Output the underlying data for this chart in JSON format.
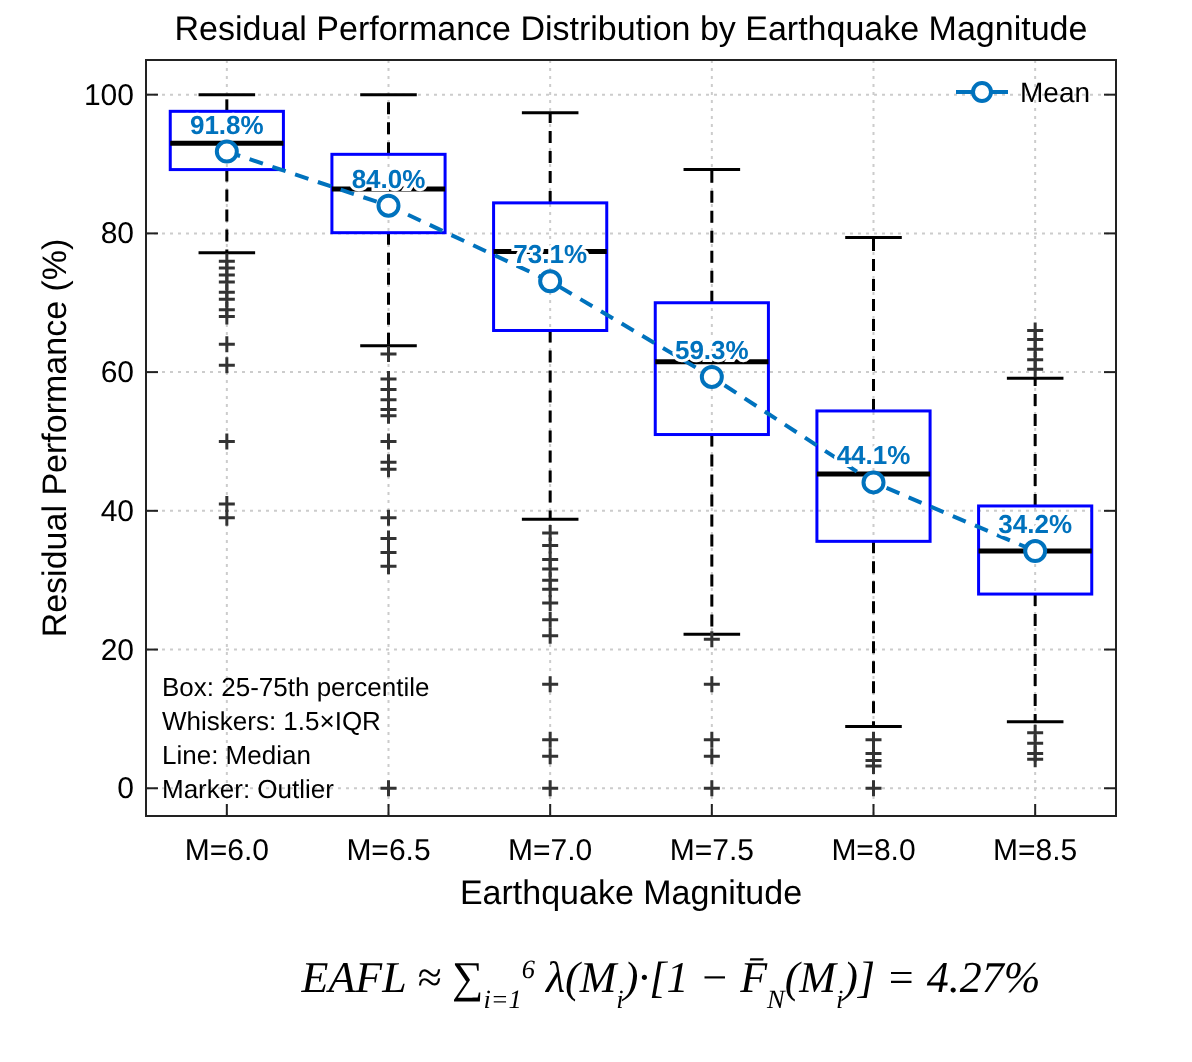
{
  "chart_data": {
    "type": "box",
    "title": "Residual Performance Distribution by Earthquake Magnitude",
    "xlabel": "Earthquake Magnitude",
    "ylabel": "Residual Performance (%)",
    "categories": [
      "M=6.0",
      "M=6.5",
      "M=7.0",
      "M=7.5",
      "M=8.0",
      "M=8.5"
    ],
    "ylim": [
      -4,
      105
    ],
    "yticks": [
      0,
      20,
      40,
      60,
      80,
      100
    ],
    "grid": true,
    "legend": "top right",
    "series": [
      {
        "color": "#0000ff",
        "boxes": [
          {
            "low": 77.2,
            "q1": 89.2,
            "median": 93.0,
            "q3": 97.6,
            "high": 100,
            "outliers": [
              76,
              75,
              74,
              73,
              71.5,
              70.5,
              69,
              68,
              64,
              61,
              50,
              41,
              39
            ]
          },
          {
            "low": 63.8,
            "q1": 80.1,
            "median": 86.4,
            "q3": 91.4,
            "high": 100,
            "outliers": [
              62.6,
              59,
              57.5,
              56,
              54.6,
              53.7,
              50,
              47,
              46,
              39,
              36,
              34,
              32,
              0
            ]
          },
          {
            "low": 38.8,
            "q1": 66.0,
            "median": 77.4,
            "q3": 84.4,
            "high": 97.4,
            "outliers": [
              36.8,
              35,
              33,
              31.6,
              30,
              28.7,
              26.7,
              24.3,
              22,
              15,
              7,
              4.6,
              0
            ]
          },
          {
            "low": 22.2,
            "q1": 51.0,
            "median": 61.5,
            "q3": 70.0,
            "high": 89.2,
            "outliers": [
              21.5,
              15,
              7,
              4.6,
              0
            ]
          },
          {
            "low": 8.9,
            "q1": 35.6,
            "median": 45.3,
            "q3": 54.4,
            "high": 79.4,
            "outliers": [
              7,
              5,
              4,
              3.2,
              0
            ]
          },
          {
            "low": 9.6,
            "q1": 28.0,
            "median": 34.2,
            "q3": 40.7,
            "high": 59.1,
            "outliers": [
              66,
              64.7,
              63.3,
              61.8,
              60.4,
              8,
              6.5,
              5,
              4.2
            ]
          }
        ]
      },
      {
        "type": "line",
        "name": "Mean",
        "color": "#0072bd",
        "marker": "circle",
        "line_style": "dashed",
        "values": [
          91.8,
          84.0,
          73.1,
          59.3,
          44.1,
          34.2
        ],
        "value_labels": [
          "91.8%",
          "84.0%",
          "73.1%",
          "59.3%",
          "44.1%",
          "34.2%"
        ]
      }
    ],
    "annotations": [
      "Box: 25-75th percentile",
      "Whiskers: 1.5×IQR",
      "Line: Median",
      "Marker: Outlier",
      "EAFL ≈ ∑$_{i=1}$$^{6}$ λ(M$_{i}$)·[1 − F̄$_{N}$(M$_{i}$)] = 4.27%"
    ]
  }
}
